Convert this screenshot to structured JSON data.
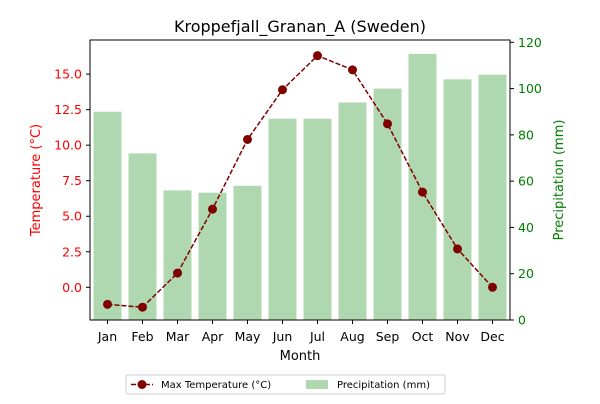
{
  "chart_data": {
    "type": "bar",
    "title": "Kroppefjall_Granan_A (Sweden)",
    "xlabel": "Month",
    "categories": [
      "Jan",
      "Feb",
      "Mar",
      "Apr",
      "May",
      "Jun",
      "Jul",
      "Aug",
      "Sep",
      "Oct",
      "Nov",
      "Dec"
    ],
    "series": [
      {
        "name": "Max Temperature (°C)",
        "type": "line",
        "axis": "left",
        "color": "#800000",
        "values": [
          -1.2,
          -1.4,
          1.0,
          5.5,
          10.4,
          13.9,
          16.3,
          15.3,
          11.5,
          6.7,
          2.7,
          0.0
        ]
      },
      {
        "name": "Precipitation (mm)",
        "type": "bar",
        "axis": "right",
        "color": "#b0d8b0",
        "values": [
          90,
          72,
          56,
          55,
          58,
          87,
          87,
          94,
          100,
          115,
          104,
          106
        ]
      }
    ],
    "ylabel_left": "Temperature (°C)",
    "ylabel_right": "Precipitation (mm)",
    "ylim_left": [
      -2.3,
      17.4
    ],
    "ylim_right": [
      0,
      121
    ],
    "yticks_left": [
      "0.0",
      "2.5",
      "5.0",
      "7.5",
      "10.0",
      "12.5",
      "15.0"
    ],
    "yticks_right": [
      "0",
      "20",
      "40",
      "60",
      "80",
      "100",
      "120"
    ],
    "left_axis_color": "#ff0000",
    "right_axis_color": "#008000",
    "legend_placement": "bottom-center",
    "grid": false
  }
}
